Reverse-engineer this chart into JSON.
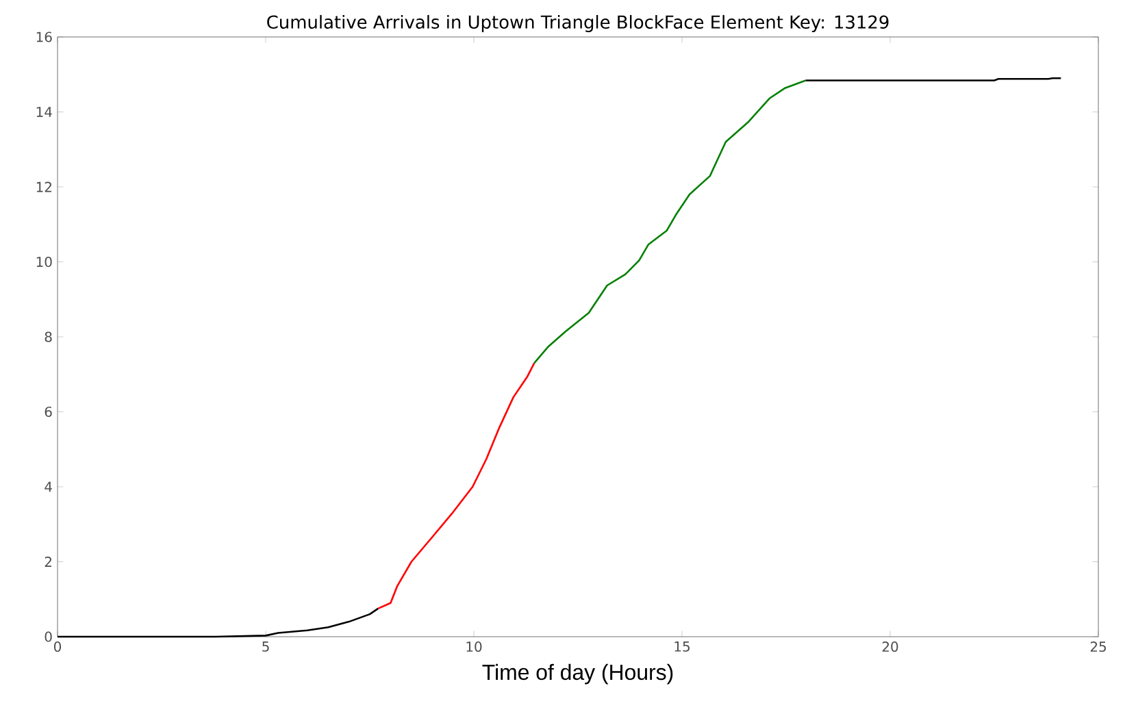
{
  "chart_data": {
    "type": "line",
    "title": "Cumulative Arrivals in Uptown Triangle BlockFace Element Key: 13129",
    "xlabel": "Time of day (Hours)",
    "xlim": [
      0,
      25
    ],
    "ylim": [
      0,
      16
    ],
    "xticks": [
      0,
      5,
      10,
      15,
      20,
      25
    ],
    "yticks": [
      0,
      2,
      4,
      6,
      8,
      10,
      12,
      14,
      16
    ],
    "marker": "none",
    "line_style": "solid",
    "series": [
      {
        "color": "#000000",
        "x": [
          0,
          3.8,
          5,
          5.3,
          6,
          6.5,
          7,
          7.5,
          7.7
        ],
        "values": [
          0,
          0,
          0.03,
          0.1,
          0.17,
          0.25,
          0.4,
          0.6,
          0.75
        ]
      },
      {
        "color": "#ff0000",
        "x": [
          7.7,
          8,
          8.16,
          8.5,
          8.98,
          9.47,
          9.97,
          10.3,
          10.6,
          10.95,
          11.28,
          11.45
        ],
        "values": [
          0.75,
          0.9,
          1.35,
          2.0,
          2.63,
          3.28,
          4.0,
          4.74,
          5.55,
          6.39,
          6.93,
          7.3
        ]
      },
      {
        "color": "#008000",
        "x": [
          11.45,
          11.78,
          12.21,
          12.76,
          13.2,
          13.64,
          13.97,
          14.19,
          14.63,
          14.85,
          15.18,
          15.67,
          16.05,
          16.6,
          17.1,
          17.48,
          17.97
        ],
        "values": [
          7.3,
          7.73,
          8.15,
          8.64,
          9.37,
          9.67,
          10.04,
          10.46,
          10.83,
          11.25,
          11.8,
          12.29,
          13.2,
          13.74,
          14.36,
          14.64,
          14.84
        ]
      },
      {
        "color": "#000000",
        "x": [
          17.97,
          22.5,
          22.6,
          23.8,
          23.9,
          24.1
        ],
        "values": [
          14.84,
          14.84,
          14.88,
          14.88,
          14.9,
          14.9
        ]
      }
    ]
  }
}
